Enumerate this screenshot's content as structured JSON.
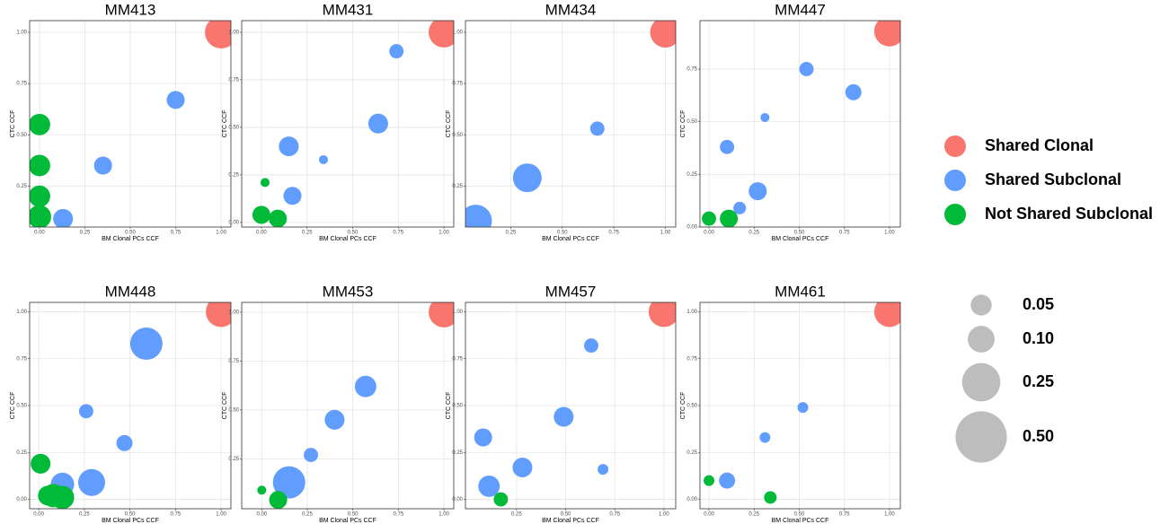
{
  "legend": {
    "groups": [
      {
        "name": "Shared Clonal",
        "color": "#f8766d"
      },
      {
        "name": "Shared Subclonal",
        "color": "#619cff"
      },
      {
        "name": "Not Shared Subclonal",
        "color": "#00ba38"
      }
    ],
    "sizes": [
      0.05,
      {
        "value": 0.1,
        "label": "0.10"
      },
      0.25,
      {
        "value": 0.5,
        "label": "0.50"
      }
    ],
    "size_color": "#bdbdbd"
  },
  "chart_data": [
    {
      "type": "scatter",
      "title": "MM413",
      "xlabel": "BM Clonal PCs CCF",
      "ylabel": "CTC CCF",
      "grid": true,
      "xlim": [
        -0.054,
        1.054
      ],
      "ylim": [
        0.05,
        1.057
      ],
      "xticks": [
        {
          "value": 0,
          "label": "0.00"
        },
        {
          "value": 0.25,
          "label": "0.25"
        },
        {
          "value": 0.5,
          "label": "0.50"
        },
        {
          "value": 0.75,
          "label": "0.75"
        },
        {
          "value": 1,
          "label": "1.00"
        }
      ],
      "yticks": [
        {
          "value": 0.25,
          "label": "0.25"
        },
        {
          "value": 0.5,
          "label": "0.50"
        },
        {
          "value": 0.75,
          "label": "0.75"
        },
        {
          "value": 1,
          "label": "1.00"
        }
      ],
      "series": [
        {
          "x": [
            1.0
          ],
          "y": [
            1.0
          ],
          "size": [
            0.151
          ]
        },
        {
          "x": [
            0.75,
            0.35,
            0.13
          ],
          "y": [
            0.67,
            0.35,
            0.09
          ],
          "size": [
            0.028,
            0.028,
            0.038
          ]
        },
        {
          "x": [
            0.0,
            0.0,
            0.0,
            0.0
          ],
          "y": [
            0.55,
            0.35,
            0.2,
            0.1
          ],
          "size": [
            0.049,
            0.049,
            0.049,
            0.063
          ]
        }
      ]
    },
    {
      "type": "scatter",
      "title": "MM431",
      "xlabel": "BM Clonal PCs CCF",
      "ylabel": "CTC CCF",
      "grid": true,
      "xlim": [
        -0.108,
        1.054
      ],
      "ylim": [
        -0.024,
        1.061
      ],
      "xticks": [
        {
          "value": 0,
          "label": "0.00"
        },
        {
          "value": 0.25,
          "label": "0.25"
        },
        {
          "value": 0.5,
          "label": "0.50"
        },
        {
          "value": 0.75,
          "label": "0.75"
        },
        {
          "value": 1,
          "label": "1.00"
        }
      ],
      "yticks": [
        {
          "value": 0,
          "label": "0.00"
        },
        {
          "value": 0.25,
          "label": "0.25"
        },
        {
          "value": 0.5,
          "label": "0.50"
        },
        {
          "value": 0.75,
          "label": "0.75"
        },
        {
          "value": 1,
          "label": "1.00"
        }
      ],
      "series": [
        {
          "x": [
            1.0
          ],
          "y": [
            1.0
          ],
          "size": [
            0.13
          ]
        },
        {
          "x": [
            0.74,
            0.64,
            0.15,
            0.34,
            0.17
          ],
          "y": [
            0.9,
            0.52,
            0.4,
            0.33,
            0.14
          ],
          "size": [
            0.012,
            0.038,
            0.038,
            0.0008,
            0.028
          ]
        },
        {
          "x": [
            0.02,
            0.0,
            0.09
          ],
          "y": [
            0.21,
            0.04,
            0.02
          ],
          "size": [
            0.0008,
            0.028,
            0.028
          ]
        }
      ]
    },
    {
      "type": "scatter",
      "title": "MM434",
      "xlabel": "BM Clonal PCs CCF",
      "ylabel": "CTC CCF",
      "grid": true,
      "xlim": [
        0.03,
        1.05
      ],
      "ylim": [
        0.05,
        1.057
      ],
      "xticks": [
        {
          "value": 0.25,
          "label": "0.25"
        },
        {
          "value": 0.5,
          "label": "0.50"
        },
        {
          "value": 0.75,
          "label": "0.75"
        },
        {
          "value": 1,
          "label": "1.00"
        }
      ],
      "yticks": [
        {
          "value": 0.25,
          "label": "0.25"
        },
        {
          "value": 0.5,
          "label": "0.50"
        },
        {
          "value": 0.75,
          "label": "0.75"
        },
        {
          "value": 1,
          "label": "1.00"
        }
      ],
      "series": [
        {
          "x": [
            1.0
          ],
          "y": [
            1.0
          ],
          "size": [
            0.13
          ]
        },
        {
          "x": [
            0.67,
            0.33,
            0.08
          ],
          "y": [
            0.53,
            0.29,
            0.08
          ],
          "size": [
            0.012,
            0.111,
            0.151
          ]
        },
        {
          "x": [],
          "y": [],
          "size": []
        }
      ]
    },
    {
      "type": "scatter",
      "title": "MM447",
      "xlabel": "BM Clonal PCs CCF",
      "ylabel": "CTC CCF",
      "grid": true,
      "xlim": [
        -0.05,
        1.06
      ],
      "ylim": [
        0,
        0.98
      ],
      "xticks": [
        {
          "value": 0,
          "label": "0.00"
        },
        {
          "value": 0.25,
          "label": "0.25"
        },
        {
          "value": 0.5,
          "label": "0.50"
        },
        {
          "value": 0.75,
          "label": "0.75"
        },
        {
          "value": 1,
          "label": "1.00"
        }
      ],
      "yticks": [
        {
          "value": 0,
          "label": "0.00"
        },
        {
          "value": 0.25,
          "label": "0.25"
        },
        {
          "value": 0.5,
          "label": "0.50"
        },
        {
          "value": 0.75,
          "label": "0.75"
        }
      ],
      "series": [
        {
          "x": [
            1.0
          ],
          "y": [
            0.93
          ],
          "size": [
            0.13
          ]
        },
        {
          "x": [
            0.54,
            0.8,
            0.31,
            0.1,
            0.27,
            0.17
          ],
          "y": [
            0.75,
            0.64,
            0.52,
            0.38,
            0.17,
            0.09
          ],
          "size": [
            0.012,
            0.019,
            0.0008,
            0.012,
            0.028,
            0.007
          ]
        },
        {
          "x": [
            0.0,
            0.11
          ],
          "y": [
            0.04,
            0.04
          ],
          "size": [
            0.012,
            0.028
          ]
        }
      ]
    },
    {
      "type": "scatter",
      "title": "MM448",
      "xlabel": "BM Clonal PCs CCF",
      "ylabel": "CTC CCF",
      "grid": true,
      "xlim": [
        -0.05,
        1.054
      ],
      "ylim": [
        -0.05,
        1.05
      ],
      "xticks": [
        {
          "value": 0,
          "label": "0.00"
        },
        {
          "value": 0.25,
          "label": "0.25"
        },
        {
          "value": 0.5,
          "label": "0.50"
        },
        {
          "value": 0.75,
          "label": "0.75"
        },
        {
          "value": 1,
          "label": "1.00"
        }
      ],
      "yticks": [
        {
          "value": 0,
          "label": "0.00"
        },
        {
          "value": 0.25,
          "label": "0.25"
        },
        {
          "value": 0.5,
          "label": "0.50"
        },
        {
          "value": 0.75,
          "label": "0.75"
        },
        {
          "value": 1,
          "label": "1.00"
        }
      ],
      "series": [
        {
          "x": [
            1.0
          ],
          "y": [
            1.0
          ],
          "size": [
            0.13
          ]
        },
        {
          "x": [
            0.59,
            0.26,
            0.47,
            0.29,
            0.13
          ],
          "y": [
            0.83,
            0.47,
            0.3,
            0.09,
            0.08
          ],
          "size": [
            0.151,
            0.012,
            0.019,
            0.093,
            0.063
          ]
        },
        {
          "x": [
            0.01,
            0.08,
            0.13,
            0.05
          ],
          "y": [
            0.19,
            0.02,
            0.01,
            0.02
          ],
          "size": [
            0.038,
            0.063,
            0.063,
            0.038
          ]
        }
      ]
    },
    {
      "type": "scatter",
      "title": "MM453",
      "xlabel": "BM Clonal PCs CCF",
      "ylabel": "CTC CCF",
      "grid": true,
      "xlim": [
        -0.11,
        1.054
      ],
      "ylim": [
        -0.005,
        1.05
      ],
      "xticks": [
        {
          "value": 0,
          "label": "0.00"
        },
        {
          "value": 0.25,
          "label": "0.25"
        },
        {
          "value": 0.5,
          "label": "0.50"
        },
        {
          "value": 0.75,
          "label": "0.75"
        },
        {
          "value": 1,
          "label": "1.00"
        }
      ],
      "yticks": [
        {
          "value": 0.25,
          "label": "0.25"
        },
        {
          "value": 0.5,
          "label": "0.50"
        },
        {
          "value": 0.75,
          "label": "0.75"
        },
        {
          "value": 1,
          "label": "1.00"
        }
      ],
      "series": [
        {
          "x": [
            1.0
          ],
          "y": [
            1.0
          ],
          "size": [
            0.13
          ]
        },
        {
          "x": [
            0.57,
            0.4,
            0.27,
            0.15
          ],
          "y": [
            0.62,
            0.45,
            0.27,
            0.13
          ],
          "size": [
            0.049,
            0.038,
            0.012,
            0.151
          ]
        },
        {
          "x": [
            0.0,
            0.09
          ],
          "y": [
            0.09,
            0.04
          ],
          "size": [
            0.0008,
            0.028
          ]
        }
      ]
    },
    {
      "type": "scatter",
      "title": "MM457",
      "xlabel": "BM Clonal PCs CCF",
      "ylabel": "CTC CCF",
      "grid": true,
      "xlim": [
        -0.01,
        1.06
      ],
      "ylim": [
        -0.05,
        1.05
      ],
      "xticks": [
        {
          "value": 0.25,
          "label": "0.25"
        },
        {
          "value": 0.5,
          "label": "0.50"
        },
        {
          "value": 0.75,
          "label": "0.75"
        },
        {
          "value": 1,
          "label": "1.00"
        }
      ],
      "yticks": [
        {
          "value": 0,
          "label": "0.00"
        },
        {
          "value": 0.25,
          "label": "0.25"
        },
        {
          "value": 0.5,
          "label": "0.50"
        },
        {
          "value": 0.75,
          "label": "0.75"
        },
        {
          "value": 1,
          "label": "1.00"
        }
      ],
      "series": [
        {
          "x": [
            1.0
          ],
          "y": [
            1.0
          ],
          "size": [
            0.13
          ]
        },
        {
          "x": [
            0.63,
            0.49,
            0.08,
            0.28,
            0.11,
            0.69
          ],
          "y": [
            0.82,
            0.44,
            0.33,
            0.17,
            0.07,
            0.16
          ],
          "size": [
            0.012,
            0.038,
            0.028,
            0.038,
            0.049,
            0.003
          ]
        },
        {
          "x": [
            0.17
          ],
          "y": [
            0.0
          ],
          "size": [
            0.012
          ]
        }
      ]
    },
    {
      "type": "scatter",
      "title": "MM461",
      "xlabel": "BM Clonal PCs CCF",
      "ylabel": "CTC CCF",
      "grid": true,
      "xlim": [
        -0.05,
        1.06
      ],
      "ylim": [
        -0.05,
        1.05
      ],
      "xticks": [
        {
          "value": 0,
          "label": "0.00"
        },
        {
          "value": 0.25,
          "label": "0.25"
        },
        {
          "value": 0.5,
          "label": "0.50"
        },
        {
          "value": 0.75,
          "label": "0.75"
        },
        {
          "value": 1,
          "label": "1.00"
        }
      ],
      "yticks": [
        {
          "value": 0,
          "label": "0.00"
        },
        {
          "value": 0.25,
          "label": "0.25"
        },
        {
          "value": 0.5,
          "label": "0.50"
        },
        {
          "value": 0.75,
          "label": "0.75"
        },
        {
          "value": 1,
          "label": "1.00"
        }
      ],
      "series": [
        {
          "x": [
            1.0
          ],
          "y": [
            1.0
          ],
          "size": [
            0.13
          ]
        },
        {
          "x": [
            0.52,
            0.31,
            0.1
          ],
          "y": [
            0.49,
            0.33,
            0.1
          ],
          "size": [
            0.003,
            0.003,
            0.019
          ]
        },
        {
          "x": [
            0.0,
            0.34
          ],
          "y": [
            0.1,
            0.01
          ],
          "size": [
            0.003,
            0.007
          ]
        }
      ]
    }
  ]
}
